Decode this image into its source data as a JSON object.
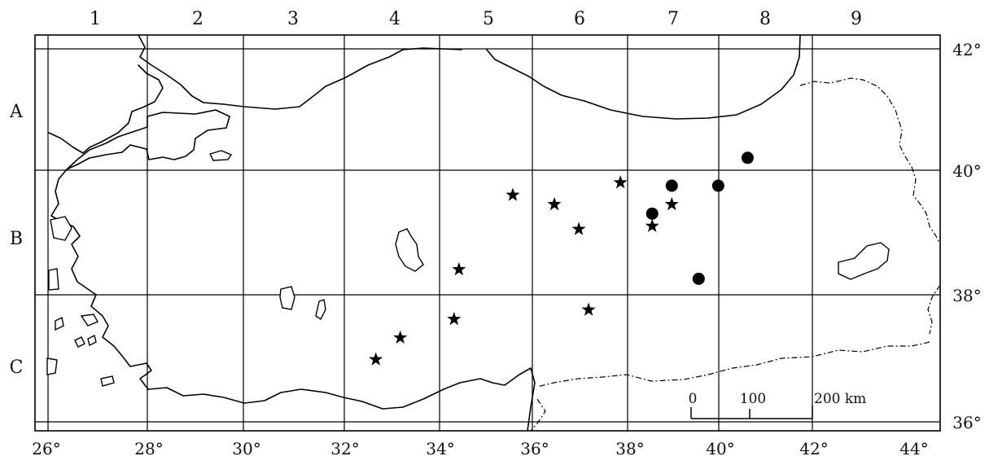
{
  "grid": {
    "column_labels": [
      "1",
      "2",
      "3",
      "4",
      "5",
      "6",
      "7",
      "8",
      "9"
    ],
    "row_labels": [
      "A",
      "B",
      "C"
    ],
    "longitude_labels": [
      "26°",
      "28°",
      "30°",
      "32°",
      "34°",
      "36°",
      "38°",
      "40°",
      "42°",
      "44°"
    ],
    "latitude_labels": [
      "42°",
      "40°",
      "38°",
      "36°"
    ]
  },
  "scale_bar": {
    "label_0": "0",
    "label_100": "100",
    "label_200": "200 km"
  },
  "markers": {
    "stars": [
      {
        "lon": 35.5,
        "lat": 39.6
      },
      {
        "lon": 36.35,
        "lat": 39.45
      },
      {
        "lon": 37.7,
        "lat": 39.8
      },
      {
        "lon": 36.85,
        "lat": 39.05
      },
      {
        "lon": 38.75,
        "lat": 39.45
      },
      {
        "lon": 38.35,
        "lat": 39.1
      },
      {
        "lon": 34.4,
        "lat": 38.4
      },
      {
        "lon": 37.05,
        "lat": 37.75
      },
      {
        "lon": 34.3,
        "lat": 37.6
      },
      {
        "lon": 33.2,
        "lat": 37.3
      },
      {
        "lon": 32.7,
        "lat": 36.95
      }
    ],
    "dots": [
      {
        "lon": 40.3,
        "lat": 40.2
      },
      {
        "lon": 38.75,
        "lat": 39.75
      },
      {
        "lon": 39.7,
        "lat": 39.75
      },
      {
        "lon": 38.35,
        "lat": 39.3
      },
      {
        "lon": 39.3,
        "lat": 38.25
      }
    ],
    "colors": {
      "marker": "#000000",
      "lines": "#000000",
      "background": "#ffffff"
    }
  }
}
